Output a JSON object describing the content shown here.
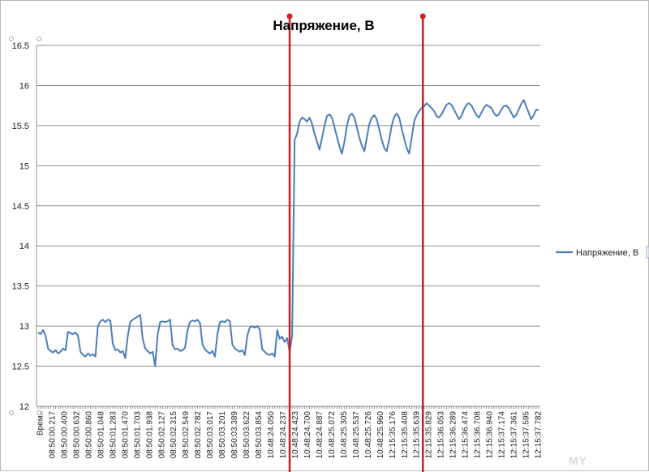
{
  "chart_data": {
    "type": "line",
    "title": "Напряжение, В",
    "xlabel": "Время",
    "ylabel": "",
    "ylim": [
      12,
      16.5
    ],
    "y_ticks": [
      "12",
      "12.5",
      "13",
      "13.5",
      "14",
      "14.5",
      "15",
      "15.5",
      "16",
      "16.5"
    ],
    "grid": "horizontal",
    "legend": "right",
    "series": [
      {
        "name": "Напряжение, В",
        "color": "#4a7ebb",
        "values": [
          12.92,
          12.9,
          12.95,
          12.88,
          12.72,
          12.69,
          12.67,
          12.7,
          12.66,
          12.68,
          12.72,
          12.7,
          12.93,
          12.91,
          12.9,
          12.92,
          12.88,
          12.68,
          12.64,
          12.62,
          12.66,
          12.63,
          12.65,
          12.62,
          13.0,
          13.06,
          13.08,
          13.05,
          13.08,
          13.07,
          12.78,
          12.7,
          12.71,
          12.67,
          12.69,
          12.6,
          12.88,
          13.05,
          13.08,
          13.1,
          13.12,
          13.14,
          12.84,
          12.72,
          12.69,
          12.66,
          12.68,
          12.5,
          12.9,
          13.05,
          13.06,
          13.05,
          13.06,
          13.08,
          12.76,
          12.71,
          12.72,
          12.69,
          12.7,
          12.73,
          12.95,
          13.05,
          13.07,
          13.06,
          13.08,
          13.04,
          12.77,
          12.71,
          12.68,
          12.66,
          12.69,
          12.62,
          12.9,
          13.05,
          13.06,
          13.05,
          13.08,
          13.06,
          12.77,
          12.72,
          12.7,
          12.68,
          12.7,
          12.64,
          12.88,
          12.98,
          13.0,
          12.98,
          13.0,
          12.96,
          12.71,
          12.68,
          12.65,
          12.64,
          12.66,
          12.62,
          12.95,
          12.84,
          12.87,
          12.8,
          12.85,
          12.68,
          12.88,
          15.32,
          15.4,
          15.55,
          15.6,
          15.58,
          15.55,
          15.6,
          15.52,
          15.4,
          15.3,
          15.2,
          15.35,
          15.5,
          15.62,
          15.64,
          15.6,
          15.48,
          15.36,
          15.24,
          15.15,
          15.3,
          15.5,
          15.62,
          15.65,
          15.6,
          15.48,
          15.35,
          15.25,
          15.18,
          15.35,
          15.52,
          15.6,
          15.63,
          15.58,
          15.45,
          15.32,
          15.22,
          15.18,
          15.33,
          15.5,
          15.61,
          15.65,
          15.6,
          15.46,
          15.34,
          15.22,
          15.15,
          15.35,
          15.55,
          15.63,
          15.68,
          15.72,
          15.74,
          15.78,
          15.75,
          15.72,
          15.68,
          15.62,
          15.6,
          15.64,
          15.7,
          15.76,
          15.78,
          15.76,
          15.7,
          15.64,
          15.58,
          15.62,
          15.7,
          15.76,
          15.78,
          15.75,
          15.69,
          15.63,
          15.6,
          15.66,
          15.72,
          15.76,
          15.74,
          15.72,
          15.66,
          15.62,
          15.64,
          15.7,
          15.74,
          15.75,
          15.72,
          15.66,
          15.6,
          15.63,
          15.7,
          15.77,
          15.82,
          15.74,
          15.66,
          15.58,
          15.63,
          15.7,
          15.69
        ]
      }
    ],
    "x_tick_labels": [
      "Время",
      "08:50:00.217",
      "08:50:00.400",
      "08:50:00.632",
      "08:50:00.860",
      "08:50:01.048",
      "08:50:01.283",
      "08:50:01.470",
      "08:50:01.703",
      "08:50:01.938",
      "08:50:02.127",
      "08:50:02.315",
      "08:50:02.549",
      "08:50:02.782",
      "08:50:03.017",
      "08:50:03.201",
      "08:50:03.389",
      "08:50:03.622",
      "08:50:03.854",
      "10:48:24.050",
      "10:48:24.237",
      "10:48:24.423",
      "10:48:24.700",
      "10:48:24.887",
      "10:48:25.072",
      "10:48:25.305",
      "10:48:25.537",
      "10:48:25.726",
      "10:48:25.960",
      "12:15:35.176",
      "12:15:35.408",
      "12:15:35.639",
      "12:15:35.829",
      "12:15:36.053",
      "12:15:36.289",
      "12:15:36.474",
      "12:15:36.708",
      "12:15:36.940",
      "12:15:37.174",
      "12:15:37.361",
      "12:15:37.595",
      "12:15:37.782"
    ],
    "markers": [
      {
        "color": "#cc1f1f",
        "after_label": "08:50:03.854"
      },
      {
        "color": "#cc1f1f",
        "after_label": "10:48:25.960"
      }
    ]
  }
}
